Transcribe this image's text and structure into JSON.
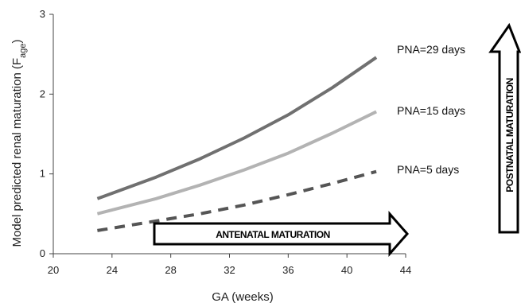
{
  "chart_data": {
    "type": "line",
    "xlabel": "GA (weeks)",
    "ylabel_main": "Model predicted renal maturation (F",
    "ylabel_sub": "age",
    "ylabel_close": ")",
    "xlim": [
      20,
      44
    ],
    "ylim": [
      0,
      3
    ],
    "xticks": [
      "20",
      "24",
      "28",
      "32",
      "36",
      "40",
      "44"
    ],
    "yticks": [
      "0",
      "1",
      "2",
      "3"
    ],
    "grid": false,
    "series": [
      {
        "name": "PNA=29 days",
        "color": "#707070",
        "dash": "solid",
        "x": [
          23,
          27,
          30,
          33,
          36,
          39,
          42
        ],
        "y": [
          0.69,
          0.96,
          1.19,
          1.45,
          1.74,
          2.08,
          2.46
        ]
      },
      {
        "name": "PNA=15 days",
        "color": "#b3b3b3",
        "dash": "solid",
        "x": [
          23,
          27,
          30,
          33,
          36,
          39,
          42
        ],
        "y": [
          0.5,
          0.69,
          0.86,
          1.05,
          1.26,
          1.51,
          1.78
        ]
      },
      {
        "name": "PNA=5 days",
        "color": "#555555",
        "dash": "dashed",
        "x": [
          23,
          27,
          30,
          33,
          36,
          39,
          42
        ],
        "y": [
          0.29,
          0.41,
          0.5,
          0.61,
          0.74,
          0.88,
          1.03
        ]
      }
    ],
    "annotations": {
      "antenatal": "ANTENATAL MATURATION",
      "postnatal": "POSTNATAL MATURATION"
    }
  }
}
